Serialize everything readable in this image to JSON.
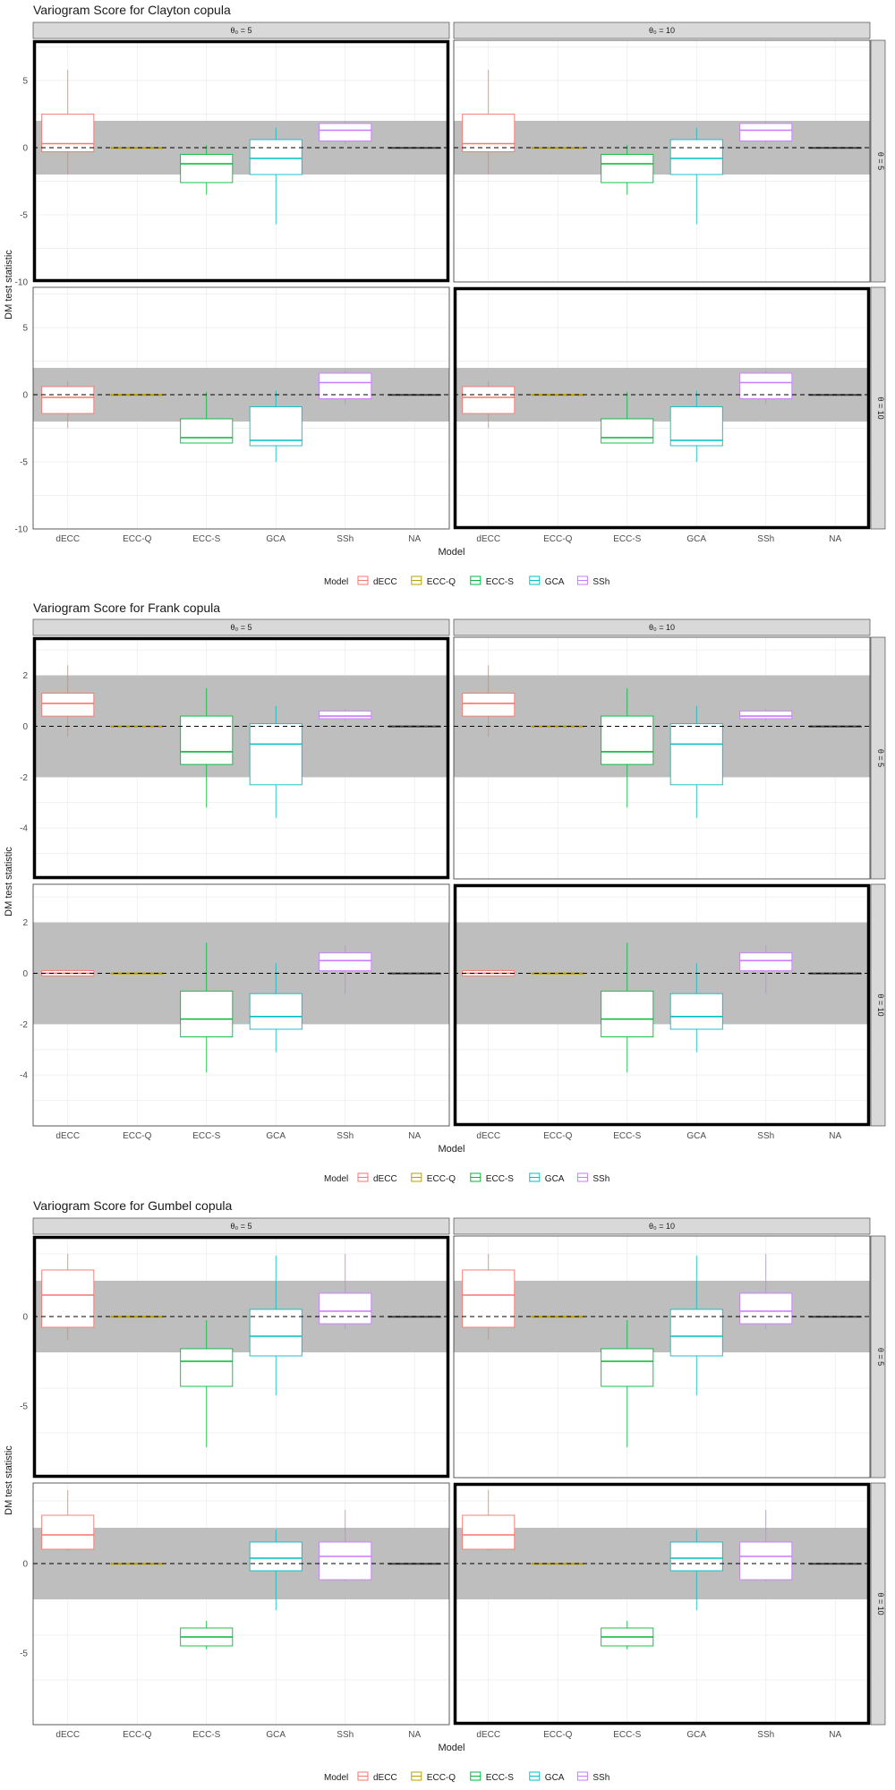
{
  "chart_data": [
    {
      "type": "box",
      "title": "Variogram Score for Clayton copula",
      "xlabel": "Model",
      "ylabel": "DM test statistic",
      "ylim": [
        -10,
        8
      ],
      "yticks": [
        5,
        0,
        -5,
        -10
      ],
      "band": [
        -2,
        2
      ],
      "reference_line": 0,
      "categories": [
        "dECC",
        "ECC-Q",
        "ECC-S",
        "GCA",
        "SSh",
        "NA"
      ],
      "col_strips": [
        "θ₀ = 5",
        "θ₀ = 10"
      ],
      "row_strips": [
        "θ = 5",
        "θ = 10"
      ],
      "highlight": [
        [
          0,
          0
        ],
        [
          1,
          1
        ]
      ],
      "rows": [
        {
          "dECC": {
            "whisker_low": -2.0,
            "q1": -0.3,
            "median": 0.3,
            "q3": 2.5,
            "whisker_high": 5.8
          },
          "ECC-Q": {
            "whisker_low": 0,
            "q1": 0,
            "median": 0,
            "q3": 0,
            "whisker_high": 0
          },
          "ECC-S": {
            "whisker_low": -3.5,
            "q1": -2.6,
            "median": -1.2,
            "q3": -0.5,
            "whisker_high": 0.2
          },
          "GCA": {
            "whisker_low": -5.7,
            "q1": -2.0,
            "median": -0.8,
            "q3": 0.6,
            "whisker_high": 1.5
          },
          "SSh": {
            "whisker_low": 0.3,
            "q1": 0.5,
            "median": 1.3,
            "q3": 1.8,
            "whisker_high": 2.0
          },
          "NA": {
            "whisker_low": 0,
            "q1": 0,
            "median": 0,
            "q3": 0,
            "whisker_high": 0
          }
        },
        {
          "dECC": {
            "whisker_low": -2.5,
            "q1": -1.4,
            "median": -0.2,
            "q3": 0.6,
            "whisker_high": 1.0
          },
          "ECC-Q": {
            "whisker_low": 0,
            "q1": 0,
            "median": 0,
            "q3": 0,
            "whisker_high": 0
          },
          "ECC-S": {
            "whisker_low": -3.6,
            "q1": -3.6,
            "median": -3.2,
            "q3": -1.8,
            "whisker_high": 0.2
          },
          "GCA": {
            "whisker_low": -5.0,
            "q1": -3.8,
            "median": -3.4,
            "q3": -0.9,
            "whisker_high": 0.3
          },
          "SSh": {
            "whisker_low": -0.7,
            "q1": -0.3,
            "median": 0.9,
            "q3": 1.6,
            "whisker_high": 1.8
          },
          "NA": {
            "whisker_low": 0,
            "q1": 0,
            "median": 0,
            "q3": 0,
            "whisker_high": 0
          }
        }
      ]
    },
    {
      "type": "box",
      "title": "Variogram Score for Frank copula",
      "xlabel": "Model",
      "ylabel": "DM test statistic",
      "ylim": [
        -6,
        3.5
      ],
      "yticks": [
        2,
        0,
        -2,
        -4
      ],
      "band": [
        -2,
        2
      ],
      "reference_line": 0,
      "categories": [
        "dECC",
        "ECC-Q",
        "ECC-S",
        "GCA",
        "SSh",
        "NA"
      ],
      "col_strips": [
        "θ₀ = 5",
        "θ₀ = 10"
      ],
      "row_strips": [
        "θ = 5",
        "θ = 10"
      ],
      "highlight": [
        [
          0,
          0
        ],
        [
          1,
          1
        ]
      ],
      "rows": [
        {
          "dECC": {
            "whisker_low": -0.4,
            "q1": 0.4,
            "median": 0.9,
            "q3": 1.3,
            "whisker_high": 2.4
          },
          "ECC-Q": {
            "whisker_low": 0,
            "q1": 0,
            "median": 0,
            "q3": 0,
            "whisker_high": 0
          },
          "ECC-S": {
            "whisker_low": -3.2,
            "q1": -1.5,
            "median": -1.0,
            "q3": 0.4,
            "whisker_high": 1.5
          },
          "GCA": {
            "whisker_low": -3.6,
            "q1": -2.3,
            "median": -0.7,
            "q3": 0.1,
            "whisker_high": 0.8
          },
          "SSh": {
            "whisker_low": 0.2,
            "q1": 0.3,
            "median": 0.4,
            "q3": 0.6,
            "whisker_high": 0.7
          },
          "NA": {
            "whisker_low": 0,
            "q1": 0,
            "median": 0,
            "q3": 0,
            "whisker_high": 0
          }
        },
        {
          "dECC": {
            "whisker_low": -0.1,
            "q1": -0.1,
            "median": 0.0,
            "q3": 0.1,
            "whisker_high": 0.1
          },
          "ECC-Q": {
            "whisker_low": 0,
            "q1": 0,
            "median": 0,
            "q3": 0,
            "whisker_high": 0
          },
          "ECC-S": {
            "whisker_low": -3.9,
            "q1": -2.5,
            "median": -1.8,
            "q3": -0.7,
            "whisker_high": 1.2
          },
          "GCA": {
            "whisker_low": -3.1,
            "q1": -2.2,
            "median": -1.7,
            "q3": -0.8,
            "whisker_high": 0.4
          },
          "SSh": {
            "whisker_low": -0.8,
            "q1": 0.1,
            "median": 0.5,
            "q3": 0.8,
            "whisker_high": 1.1
          },
          "NA": {
            "whisker_low": 0,
            "q1": 0,
            "median": 0,
            "q3": 0,
            "whisker_high": 0
          }
        }
      ]
    },
    {
      "type": "box",
      "title": "Variogram Score for Gumbel copula",
      "xlabel": "Model",
      "ylabel": "DM test statistic",
      "ylim": [
        -9,
        4.5
      ],
      "yticks": [
        0,
        -5
      ],
      "band": [
        -2,
        2
      ],
      "reference_line": 0,
      "categories": [
        "dECC",
        "ECC-Q",
        "ECC-S",
        "GCA",
        "SSh",
        "NA"
      ],
      "col_strips": [
        "θ₀ = 5",
        "θ₀ = 10"
      ],
      "row_strips": [
        "θ = 5",
        "θ = 10"
      ],
      "highlight": [
        [
          0,
          0
        ],
        [
          1,
          1
        ]
      ],
      "rows": [
        {
          "dECC": {
            "whisker_low": -1.3,
            "q1": -0.6,
            "median": 1.2,
            "q3": 2.6,
            "whisker_high": 3.5
          },
          "ECC-Q": {
            "whisker_low": 0,
            "q1": 0,
            "median": 0,
            "q3": 0,
            "whisker_high": 0
          },
          "ECC-S": {
            "whisker_low": -7.3,
            "q1": -3.9,
            "median": -2.5,
            "q3": -1.8,
            "whisker_high": -0.2
          },
          "GCA": {
            "whisker_low": -4.4,
            "q1": -2.2,
            "median": -1.1,
            "q3": 0.4,
            "whisker_high": 3.4
          },
          "SSh": {
            "whisker_low": -0.7,
            "q1": -0.4,
            "median": 0.3,
            "q3": 1.3,
            "whisker_high": 3.5
          },
          "NA": {
            "whisker_low": 0,
            "q1": 0,
            "median": 0,
            "q3": 0,
            "whisker_high": 0
          }
        },
        {
          "dECC": {
            "whisker_low": 0.7,
            "q1": 0.8,
            "median": 1.6,
            "q3": 2.7,
            "whisker_high": 4.1
          },
          "ECC-Q": {
            "whisker_low": 0,
            "q1": 0,
            "median": 0,
            "q3": 0,
            "whisker_high": 0
          },
          "ECC-S": {
            "whisker_low": -4.8,
            "q1": -4.6,
            "median": -4.1,
            "q3": -3.6,
            "whisker_high": -3.2
          },
          "GCA": {
            "whisker_low": -2.6,
            "q1": -0.4,
            "median": 0.3,
            "q3": 1.2,
            "whisker_high": 1.9
          },
          "SSh": {
            "whisker_low": -1.0,
            "q1": -0.9,
            "median": 0.4,
            "q3": 1.2,
            "whisker_high": 3.0
          },
          "NA": {
            "whisker_low": 0,
            "q1": 0,
            "median": 0,
            "q3": 0,
            "whisker_high": 0
          }
        }
      ]
    }
  ],
  "legend": {
    "title": "Model",
    "items": [
      "dECC",
      "ECC-Q",
      "ECC-S",
      "GCA",
      "SSh"
    ]
  },
  "colors": {
    "dECC": "#F8766D",
    "ECC-Q": "#B79F00",
    "ECC-S": "#00BA38",
    "GCA": "#00BFC4",
    "SSh": "#C77CFF",
    "NA": "#444444",
    "band": "#bebebe",
    "strip": "#d9d9d9",
    "grid": "#ebebeb"
  }
}
